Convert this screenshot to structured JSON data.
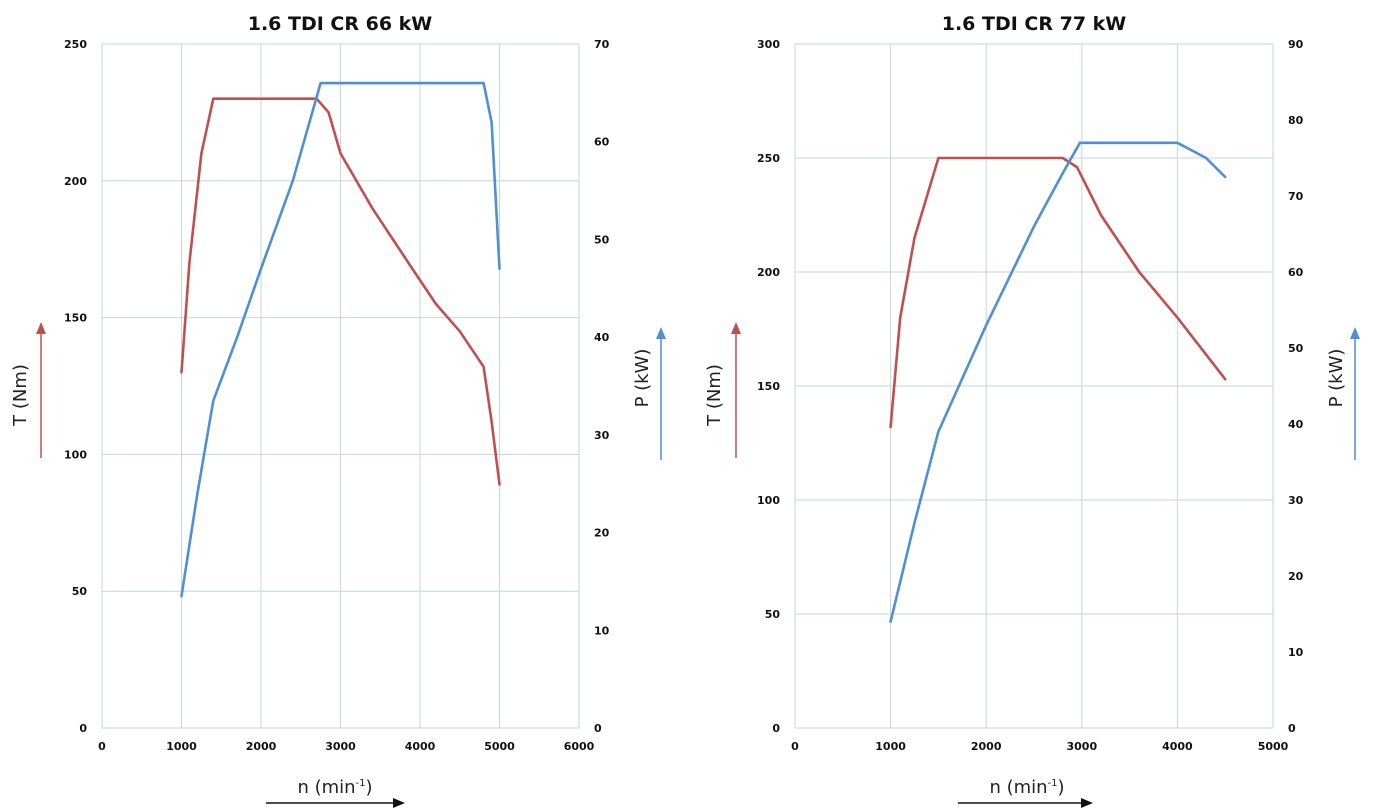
{
  "colors": {
    "torque": "#c0504d",
    "power": "#4f8fd3",
    "grid": "#c6d4e3",
    "arrow_n": "#111111"
  },
  "chart_data": [
    {
      "type": "line",
      "title": "1.6 TDI CR 66 kW",
      "xlabel": "n (min",
      "xlabel_sup": "-1",
      "xlabel_close": ")",
      "ylabel_left": "T (Nm)",
      "ylabel_right": "P (kW)",
      "xlim": [
        0,
        6000
      ],
      "ylim_left": [
        0,
        250
      ],
      "ylim_right": [
        0,
        70
      ],
      "x_ticks": [
        "0",
        "1000",
        "2000",
        "3000",
        "4000",
        "5000",
        "6000"
      ],
      "y_left_ticks": [
        "0",
        "50",
        "100",
        "150",
        "200",
        "250"
      ],
      "y_right_ticks": [
        "0",
        "10",
        "20",
        "30",
        "40",
        "50",
        "60",
        "70"
      ],
      "grid": true,
      "series": [
        {
          "axis": "left",
          "color": "#c0504d",
          "x": [
            1000,
            1100,
            1250,
            1400,
            2000,
            2700,
            2850,
            3000,
            3400,
            3900,
            4200,
            4500,
            4800,
            4900,
            5000
          ],
          "y": [
            130,
            170,
            210,
            230,
            230,
            230,
            225,
            210,
            190,
            168,
            155,
            145,
            132,
            112,
            89
          ]
        },
        {
          "axis": "right",
          "color": "#4f8fd3",
          "x": [
            1000,
            1200,
            1400,
            1700,
            2000,
            2400,
            2750,
            3000,
            4000,
            4800,
            4900,
            5000
          ],
          "y": [
            13.5,
            24,
            33.5,
            40,
            47,
            56,
            66,
            66,
            66,
            66,
            62,
            47
          ]
        }
      ]
    },
    {
      "type": "line",
      "title": "1.6 TDI CR 77 kW",
      "xlabel": "n (min",
      "xlabel_sup": "-1",
      "xlabel_close": ")",
      "ylabel_left": "T (Nm)",
      "ylabel_right": "P (kW)",
      "xlim": [
        0,
        5000
      ],
      "ylim_left": [
        0,
        300
      ],
      "ylim_right": [
        0,
        90
      ],
      "x_ticks": [
        "0",
        "1000",
        "2000",
        "3000",
        "4000",
        "5000"
      ],
      "y_left_ticks": [
        "0",
        "50",
        "100",
        "150",
        "200",
        "250",
        "300"
      ],
      "y_right_ticks": [
        "0",
        "10",
        "20",
        "30",
        "40",
        "50",
        "60",
        "70",
        "80",
        "90"
      ],
      "grid": true,
      "series": [
        {
          "axis": "left",
          "color": "#c0504d",
          "x": [
            1000,
            1100,
            1250,
            1500,
            2000,
            2800,
            2950,
            3200,
            3600,
            4000,
            4500
          ],
          "y": [
            132,
            180,
            215,
            250,
            250,
            250,
            246,
            225,
            200,
            180,
            153
          ]
        },
        {
          "axis": "right",
          "color": "#4f8fd3",
          "x": [
            1000,
            1250,
            1500,
            2000,
            2500,
            2800,
            2980,
            3500,
            4000,
            4150,
            4300,
            4500
          ],
          "y": [
            14,
            27,
            39,
            53,
            66,
            73,
            77,
            77,
            77,
            76,
            75,
            72.5
          ]
        }
      ]
    }
  ]
}
